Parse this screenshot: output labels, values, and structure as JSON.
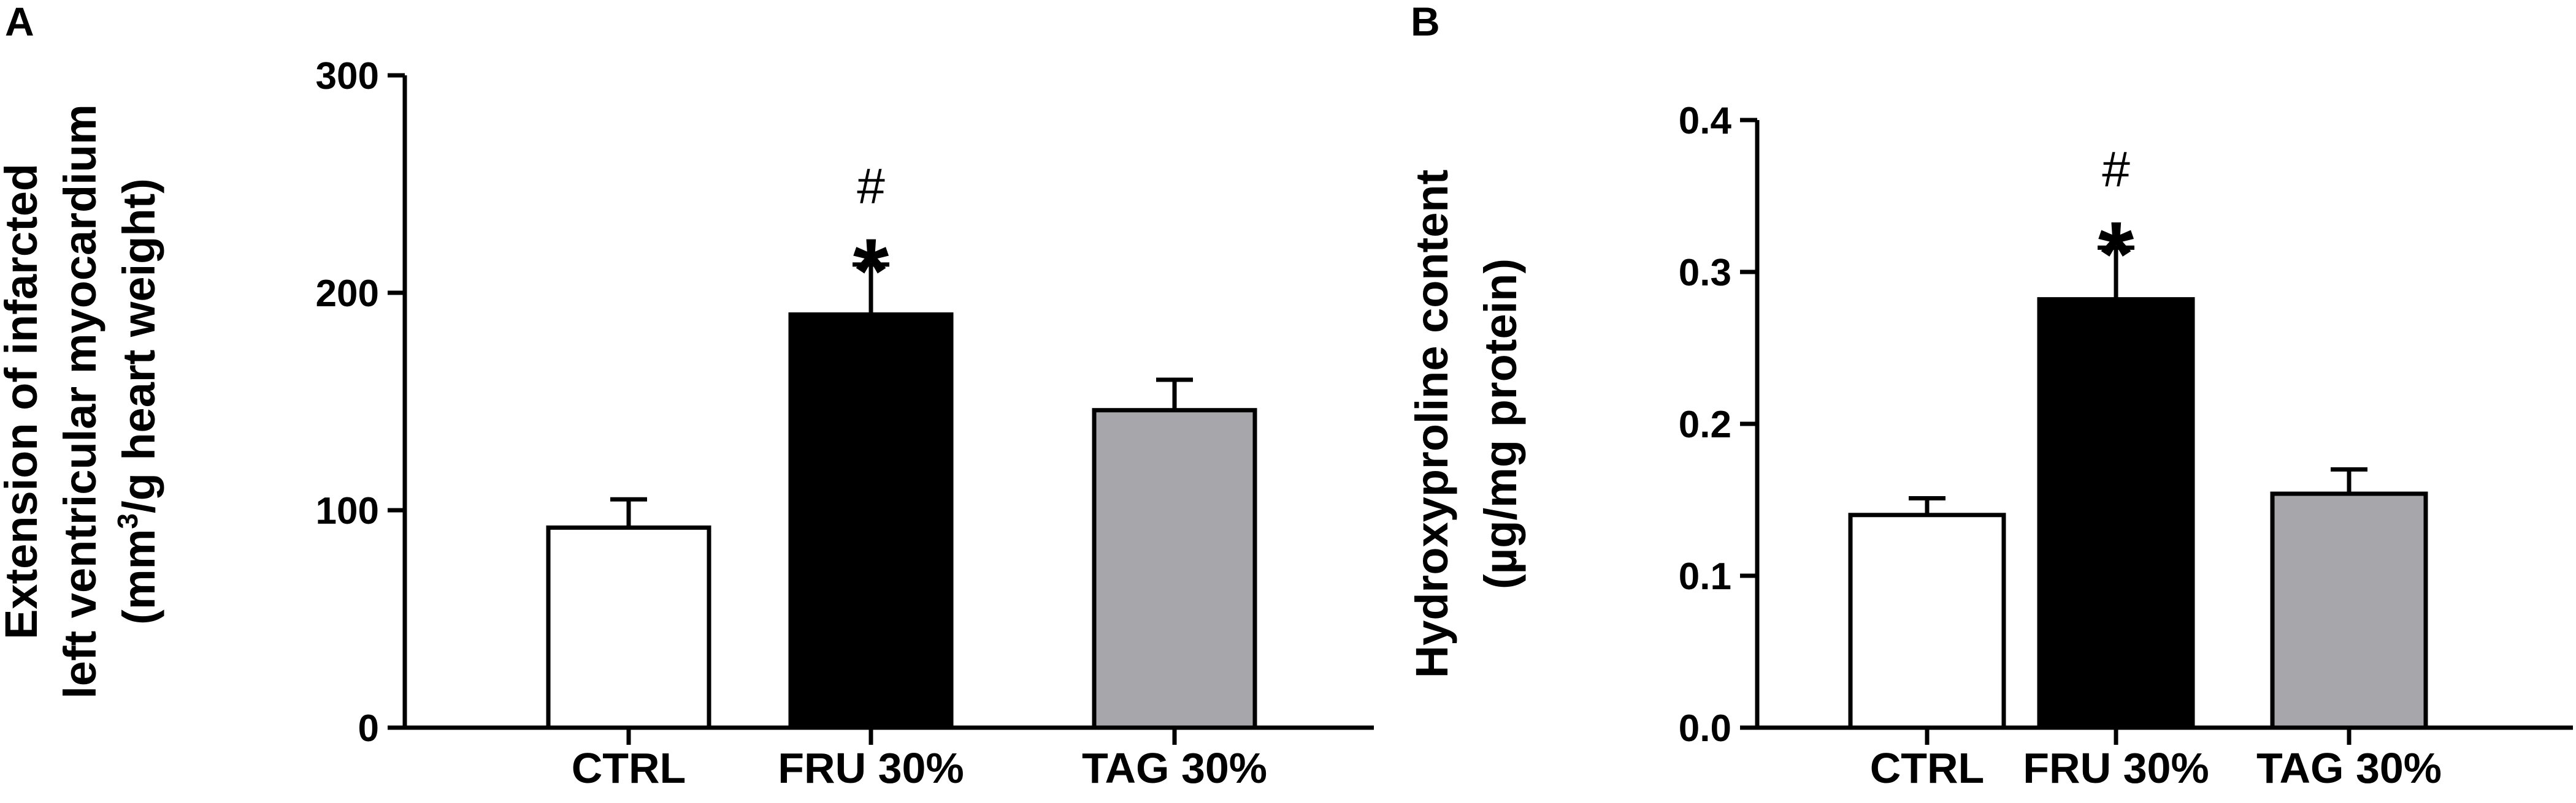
{
  "chart_data": [
    {
      "type": "bar",
      "panel_label": "A",
      "categories": [
        "CTRL",
        "FRU 30%",
        "TAG 30%"
      ],
      "values": [
        92,
        190,
        146
      ],
      "errors": [
        13,
        23,
        14
      ],
      "bar_colors": [
        "#ffffff",
        "#000000",
        "#a7a6ab"
      ],
      "significance": [
        {
          "category": "FRU 30%",
          "star": "*",
          "hash": "#"
        }
      ],
      "ylabel_lines": [
        "Extension of infarcted",
        "left ventricular myocardium"
      ],
      "ylabel_unit": {
        "pre": "(mm",
        "sup": "3",
        "post": "/g heart weight)"
      },
      "ylim": [
        0,
        300
      ],
      "yticks": [
        "0",
        "100",
        "200",
        "300"
      ],
      "grid": false
    },
    {
      "type": "bar",
      "panel_label": "B",
      "categories": [
        "CTRL",
        "FRU 30%",
        "TAG 30%"
      ],
      "values": [
        0.14,
        0.282,
        0.154
      ],
      "errors": [
        0.011,
        0.034,
        0.016
      ],
      "bar_colors": [
        "#ffffff",
        "#000000",
        "#a7a6ab"
      ],
      "significance": [
        {
          "category": "FRU 30%",
          "star": "*",
          "hash": "#"
        }
      ],
      "ylabel_lines": [
        "Hydroxyproline content",
        "(µg/mg protein)"
      ],
      "ylim": [
        0,
        0.4
      ],
      "yticks": [
        "0.0",
        "0.1",
        "0.2",
        "0.3",
        "0.4"
      ],
      "grid": false
    }
  ]
}
